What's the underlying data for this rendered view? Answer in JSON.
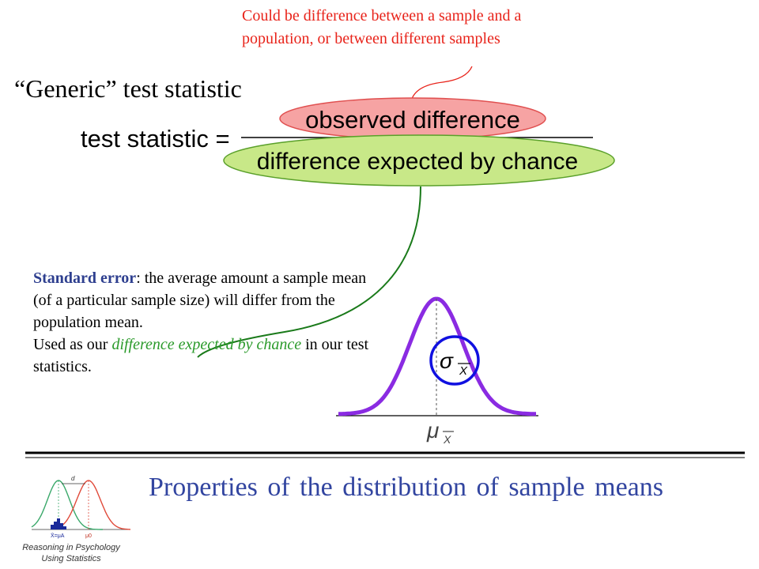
{
  "annotation": {
    "lines": [
      "Could be difference between a sample and a",
      "population, or between different samples"
    ]
  },
  "title": "“Generic” test statistic",
  "formula": {
    "lhs": "test statistic =",
    "numerator": "observed difference",
    "denominator": "difference expected by chance"
  },
  "standard_error": {
    "term": "Standard error",
    "def_rest": ": the average amount a sample mean (of a particular sample size) will differ from the population mean.",
    "used_prefix": "Used as our ",
    "used_green": "difference expected by chance",
    "used_suffix": " in our test statistics."
  },
  "distribution": {
    "sigma_symbol": "σ",
    "sigma_subscript": "X",
    "mu_symbol": "μ",
    "mu_subscript": "X"
  },
  "footer": {
    "title": "Properties of the distribution of sample means",
    "logo_caption_line1": "Reasoning in Psychology",
    "logo_caption_line2": "Using Statistics",
    "logo_labels": {
      "d": "d",
      "mu_a": "X̄=μA",
      "mu_0": "μ0"
    }
  },
  "colors": {
    "annotation_red": "#e8231a",
    "numerator_fill": "#f6a3a3",
    "denominator_fill": "#c8e888",
    "se_term": "#2e3f8f",
    "se_green": "#2a9a2a",
    "curve_purple": "#8a2be2",
    "circle_blue": "#1010e0",
    "footer_blue": "#3245a0"
  }
}
